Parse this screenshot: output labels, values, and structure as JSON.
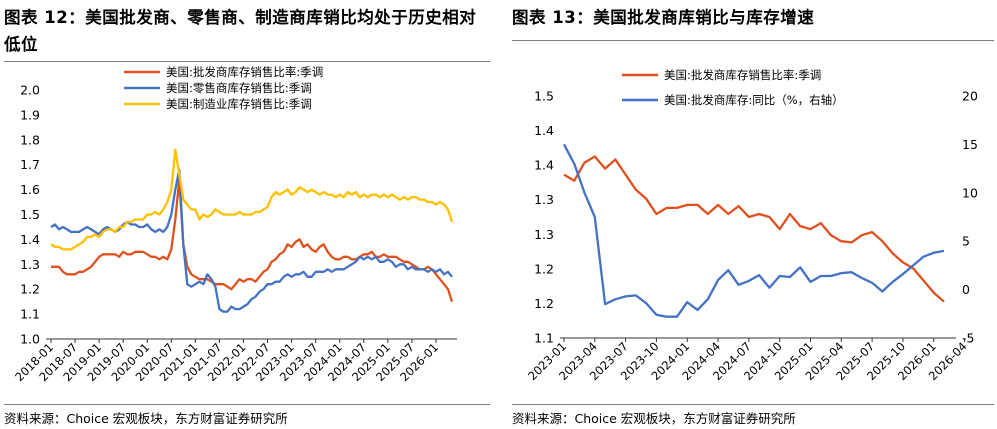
{
  "left": {
    "title": "图表 12：美国批发商、零售商、制造商库销比均处于历史相对低位",
    "source": "资料来源：Choice 宏观板块，东方财富证券研究所",
    "chart_data": {
      "type": "line",
      "yticks": [
        1.0,
        1.1,
        1.2,
        1.3,
        1.4,
        1.5,
        1.6,
        1.7,
        1.8,
        1.9,
        2.0
      ],
      "ylim": [
        1.0,
        2.0
      ],
      "xticks": [
        "2018-01",
        "2018-07",
        "2019-01",
        "2019-07",
        "2020-01",
        "2020-07",
        "2021-01",
        "2021-07",
        "2022-01",
        "2022-07",
        "2023-01",
        "2023-07",
        "2024-01",
        "2024-07",
        "2025-01",
        "2025-07",
        "2026-01"
      ],
      "x_start": "2018-01",
      "legend_position": "top-center",
      "series": [
        {
          "name": "美国:批发商库存销售比率:季调",
          "color": "#e0501e",
          "values": [
            1.29,
            1.29,
            1.29,
            1.27,
            1.26,
            1.26,
            1.26,
            1.27,
            1.27,
            1.28,
            1.29,
            1.31,
            1.33,
            1.34,
            1.34,
            1.34,
            1.34,
            1.33,
            1.35,
            1.34,
            1.34,
            1.35,
            1.35,
            1.35,
            1.34,
            1.33,
            1.33,
            1.32,
            1.33,
            1.32,
            1.36,
            1.48,
            1.64,
            1.38,
            1.29,
            1.26,
            1.25,
            1.24,
            1.24,
            1.24,
            1.23,
            1.22,
            1.22,
            1.22,
            1.21,
            1.2,
            1.22,
            1.24,
            1.23,
            1.24,
            1.24,
            1.23,
            1.25,
            1.27,
            1.28,
            1.31,
            1.32,
            1.34,
            1.35,
            1.38,
            1.37,
            1.39,
            1.4,
            1.37,
            1.38,
            1.36,
            1.35,
            1.37,
            1.38,
            1.35,
            1.33,
            1.32,
            1.32,
            1.33,
            1.33,
            1.32,
            1.32,
            1.33,
            1.34,
            1.34,
            1.35,
            1.33,
            1.33,
            1.34,
            1.33,
            1.33,
            1.33,
            1.32,
            1.31,
            1.31,
            1.3,
            1.29,
            1.28,
            1.28,
            1.29,
            1.28,
            1.26,
            1.24,
            1.22,
            1.2,
            1.15
          ]
        },
        {
          "name": "美国:零售商库存销售比:季调",
          "color": "#4472c4",
          "values": [
            1.45,
            1.46,
            1.44,
            1.45,
            1.44,
            1.43,
            1.43,
            1.43,
            1.44,
            1.45,
            1.44,
            1.43,
            1.42,
            1.44,
            1.45,
            1.44,
            1.43,
            1.44,
            1.46,
            1.47,
            1.46,
            1.46,
            1.45,
            1.45,
            1.46,
            1.44,
            1.43,
            1.44,
            1.43,
            1.45,
            1.5,
            1.6,
            1.68,
            1.38,
            1.22,
            1.21,
            1.22,
            1.23,
            1.22,
            1.26,
            1.24,
            1.21,
            1.12,
            1.11,
            1.11,
            1.13,
            1.12,
            1.12,
            1.13,
            1.14,
            1.16,
            1.17,
            1.19,
            1.2,
            1.22,
            1.22,
            1.23,
            1.23,
            1.25,
            1.26,
            1.25,
            1.26,
            1.26,
            1.27,
            1.25,
            1.25,
            1.27,
            1.27,
            1.27,
            1.28,
            1.27,
            1.28,
            1.28,
            1.28,
            1.29,
            1.3,
            1.31,
            1.33,
            1.32,
            1.33,
            1.32,
            1.33,
            1.31,
            1.31,
            1.32,
            1.31,
            1.29,
            1.3,
            1.3,
            1.28,
            1.29,
            1.28,
            1.28,
            1.28,
            1.27,
            1.28,
            1.27,
            1.28,
            1.26,
            1.27,
            1.25
          ]
        },
        {
          "name": "美国:制造业库存销售比:季调",
          "color": "#ffc000",
          "values": [
            1.38,
            1.37,
            1.37,
            1.36,
            1.36,
            1.36,
            1.37,
            1.38,
            1.39,
            1.41,
            1.41,
            1.42,
            1.41,
            1.43,
            1.44,
            1.44,
            1.43,
            1.45,
            1.45,
            1.47,
            1.47,
            1.48,
            1.48,
            1.48,
            1.5,
            1.5,
            1.51,
            1.5,
            1.52,
            1.55,
            1.6,
            1.76,
            1.66,
            1.56,
            1.54,
            1.52,
            1.52,
            1.48,
            1.5,
            1.49,
            1.5,
            1.52,
            1.51,
            1.5,
            1.5,
            1.5,
            1.5,
            1.51,
            1.5,
            1.5,
            1.5,
            1.51,
            1.51,
            1.52,
            1.53,
            1.57,
            1.59,
            1.58,
            1.59,
            1.6,
            1.58,
            1.59,
            1.61,
            1.6,
            1.59,
            1.6,
            1.59,
            1.58,
            1.59,
            1.58,
            1.58,
            1.57,
            1.58,
            1.57,
            1.59,
            1.58,
            1.59,
            1.57,
            1.58,
            1.57,
            1.58,
            1.58,
            1.57,
            1.58,
            1.57,
            1.58,
            1.57,
            1.56,
            1.57,
            1.56,
            1.57,
            1.57,
            1.56,
            1.56,
            1.55,
            1.55,
            1.54,
            1.55,
            1.54,
            1.52,
            1.47
          ]
        }
      ]
    }
  },
  "right": {
    "title": "图表 13：美国批发商库销比与库存增速",
    "source": "资料来源：Choice 宏观板块，东方财富证券研究所",
    "chart_data": {
      "type": "line",
      "yticks_left": [
        1.1,
        1.2,
        1.2,
        1.3,
        1.3,
        1.4,
        1.4,
        1.5
      ],
      "ylim_left": [
        1.1,
        1.5
      ],
      "yticks_right": [
        -5,
        0,
        5,
        10,
        15,
        20
      ],
      "ylim_right": [
        -5,
        20
      ],
      "xticks": [
        "2023-01",
        "2023-04",
        "2023-07",
        "2023-10",
        "2024-01",
        "2024-04",
        "2024-07",
        "2024-10",
        "2025-01",
        "2025-04",
        "2025-07",
        "2025-10",
        "2026-01",
        "2026-04"
      ],
      "x_start": "2023-01",
      "legend_position": "top-center",
      "series": [
        {
          "name": "美国:批发商库存销售比率:季调",
          "axis": "left",
          "color": "#e0501e",
          "values": [
            1.37,
            1.36,
            1.39,
            1.4,
            1.38,
            1.395,
            1.37,
            1.345,
            1.33,
            1.305,
            1.315,
            1.315,
            1.32,
            1.32,
            1.305,
            1.32,
            1.305,
            1.318,
            1.3,
            1.305,
            1.3,
            1.28,
            1.305,
            1.285,
            1.28,
            1.29,
            1.27,
            1.26,
            1.258,
            1.27,
            1.275,
            1.26,
            1.24,
            1.225,
            1.215,
            1.195,
            1.175,
            1.16
          ]
        },
        {
          "name": "美国:批发商库存:同比（%，右轴）",
          "axis": "right",
          "color": "#4472c4",
          "values": [
            15,
            13,
            10,
            7.5,
            -1.5,
            -1,
            -0.7,
            -0.6,
            -1.4,
            -2.6,
            -2.8,
            -2.8,
            -1.3,
            -2.1,
            -1,
            1,
            2,
            0.5,
            0.9,
            1.5,
            0.2,
            1.4,
            1.3,
            2.3,
            0.8,
            1.4,
            1.4,
            1.7,
            1.8,
            1.2,
            0.7,
            -0.2,
            0.8,
            1.6,
            2.5,
            3.4,
            3.8,
            4
          ]
        }
      ]
    }
  }
}
